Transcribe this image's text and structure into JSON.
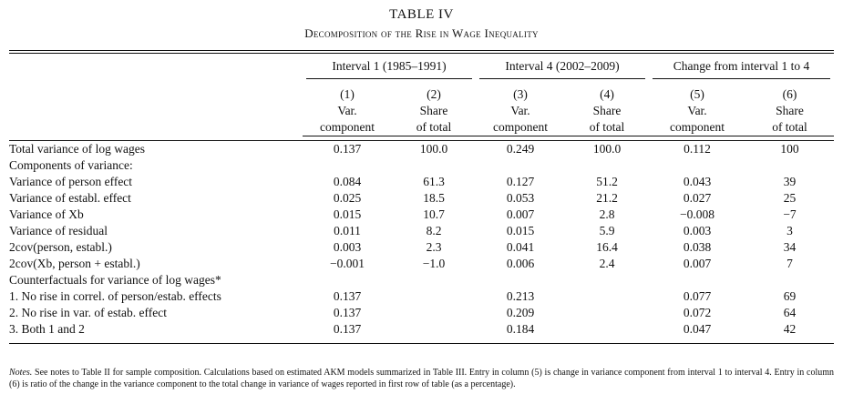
{
  "table_title": "TABLE IV",
  "table_subtitle": "Decomposition of the Rise in Wage Inequality",
  "group_headers": [
    "Interval 1 (1985–1991)",
    "Interval 4 (2002–2009)",
    "Change from interval 1 to 4"
  ],
  "columns": [
    {
      "num": "(1)",
      "line1": "Var.",
      "line2": "component"
    },
    {
      "num": "(2)",
      "line1": "Share",
      "line2": "of total"
    },
    {
      "num": "(3)",
      "line1": "Var.",
      "line2": "component"
    },
    {
      "num": "(4)",
      "line1": "Share",
      "line2": "of total"
    },
    {
      "num": "(5)",
      "line1": "Var.",
      "line2": "component"
    },
    {
      "num": "(6)",
      "line1": "Share",
      "line2": "of total"
    }
  ],
  "rows": [
    {
      "label": "Total variance of log wages",
      "v": [
        "0.137",
        "100.0",
        "0.249",
        "100.0",
        "0.112",
        "100"
      ]
    },
    {
      "label": "Components of variance:",
      "v": [
        "",
        "",
        "",
        "",
        "",
        ""
      ]
    },
    {
      "label": "Variance of person effect",
      "v": [
        "0.084",
        "61.3",
        "0.127",
        "51.2",
        "0.043",
        "39"
      ]
    },
    {
      "label": "Variance of establ. effect",
      "v": [
        "0.025",
        "18.5",
        "0.053",
        "21.2",
        "0.027",
        "25"
      ]
    },
    {
      "label": "Variance of Xb",
      "v": [
        "0.015",
        "10.7",
        "0.007",
        "2.8",
        "−0.008",
        "−7"
      ]
    },
    {
      "label": "Variance of residual",
      "v": [
        "0.011",
        "8.2",
        "0.015",
        "5.9",
        "0.003",
        "3"
      ]
    },
    {
      "label": "2cov(person, establ.)",
      "v": [
        "0.003",
        "2.3",
        "0.041",
        "16.4",
        "0.038",
        "34"
      ]
    },
    {
      "label": "2cov(Xb, person + establ.)",
      "v": [
        "−0.001",
        "−1.0",
        "0.006",
        "2.4",
        "0.007",
        "7"
      ]
    },
    {
      "label": "Counterfactuals for variance of log wages*",
      "v": [
        "",
        "",
        "",
        "",
        "",
        ""
      ]
    },
    {
      "label": "1. No rise in correl. of person/estab. effects",
      "v": [
        "0.137",
        "",
        "0.213",
        "",
        "0.077",
        "69"
      ]
    },
    {
      "label": "2. No rise in var. of estab. effect",
      "v": [
        "0.137",
        "",
        "0.209",
        "",
        "0.072",
        "64"
      ]
    },
    {
      "label": "3. Both 1 and 2",
      "v": [
        "0.137",
        "",
        "0.184",
        "",
        "0.047",
        "42"
      ]
    }
  ],
  "notes_label": "Notes.",
  "notes_text": "See notes to Table II for sample composition. Calculations based on estimated AKM models summarized in Table III. Entry in column (5) is change in variance component from interval 1 to interval 4. Entry in column (6) is ratio of the change in the variance component to the total change in variance of wages reported in first row of table (as a percentage)."
}
